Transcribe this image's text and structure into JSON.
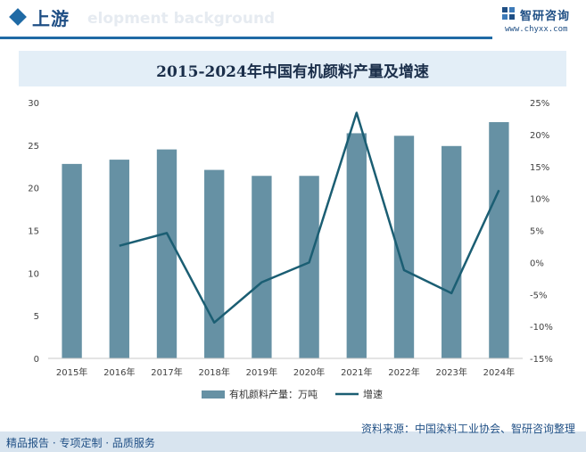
{
  "header": {
    "title": "上游",
    "watermark": "elopment background"
  },
  "brand": {
    "name": "智研咨询",
    "url": "www.chyxx.com"
  },
  "footer": {
    "source": "资料来源：中国染料工业协会、智研咨询整理",
    "slogan": "精品报告 · 专项定制 · 品质服务"
  },
  "colors": {
    "bar": "#6691a4",
    "line": "#1b5e73",
    "accent": "#1f6aa5",
    "title_band": "#e3eef7",
    "axis_text": "#404040"
  },
  "chart_data": {
    "type": "bar",
    "title": "2015-2024年中国有机颜料产量及增速",
    "categories": [
      "2015年",
      "2016年",
      "2017年",
      "2018年",
      "2019年",
      "2020年",
      "2021年",
      "2022年",
      "2023年",
      "2024年"
    ],
    "series": [
      {
        "name": "有机颜料产量：万吨",
        "type": "bar",
        "axis": "left",
        "values": [
          22.8,
          23.3,
          24.5,
          22.1,
          21.4,
          21.4,
          26.4,
          26.1,
          24.9,
          27.7
        ]
      },
      {
        "name": "增速",
        "type": "line",
        "axis": "right",
        "values": [
          null,
          2.6,
          4.6,
          -9.4,
          -3.1,
          0.0,
          23.4,
          -1.2,
          -4.8,
          11.3
        ]
      }
    ],
    "y_left": {
      "min": 0,
      "max": 30,
      "ticks": [
        0,
        5,
        10,
        15,
        20,
        25,
        30
      ]
    },
    "y_right": {
      "min": -15,
      "max": 25,
      "ticks": [
        "-15%",
        "-10%",
        "-5%",
        "0%",
        "5%",
        "10%",
        "15%",
        "20%",
        "25%"
      ]
    },
    "legend_position": "bottom"
  }
}
